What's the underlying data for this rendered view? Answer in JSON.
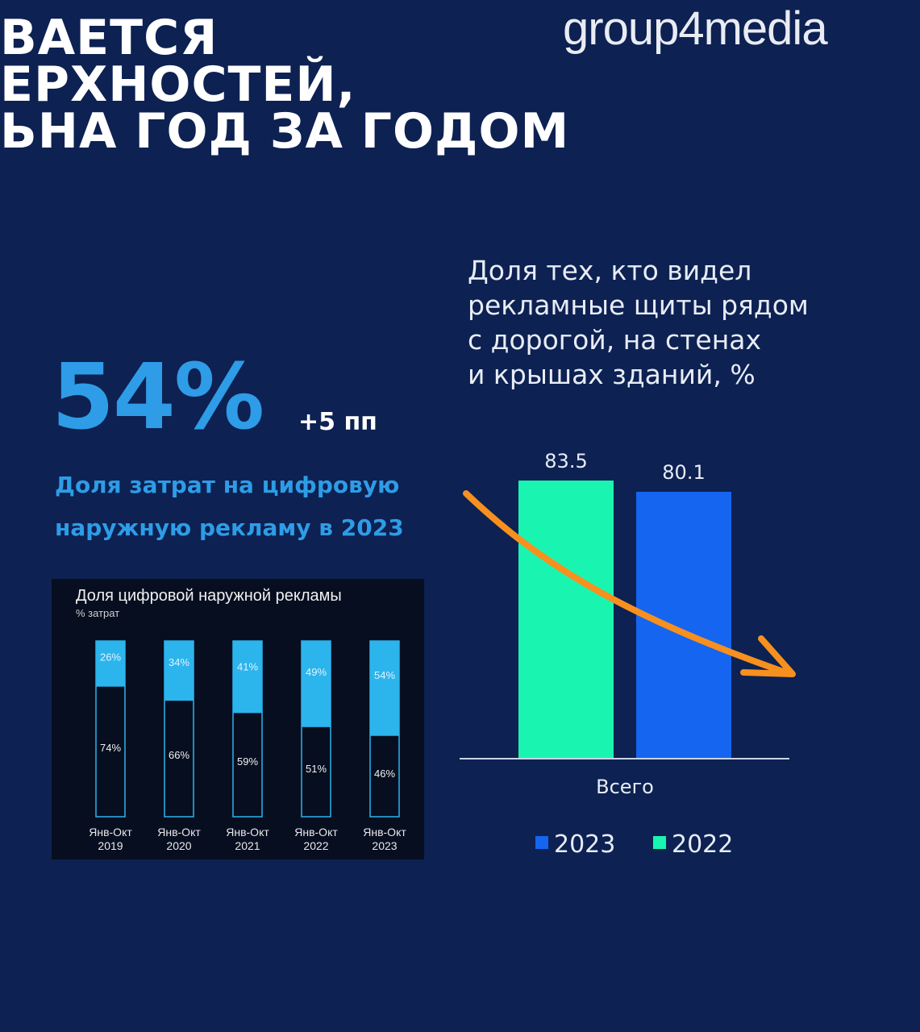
{
  "logo": "group4media",
  "title_lines": [
    "ВАЕТСЯ",
    "ЕРХНОСТЕЙ,",
    "ЬНА ГОД ЗА ГОДОМ"
  ],
  "highlight": {
    "value": "54%",
    "delta": "+5 пп",
    "caption_line1": "Доля затрат на цифровую",
    "caption_line2": "наружную рекламу в 2023"
  },
  "colors": {
    "background": "#0d2152",
    "accent_blue": "#2e9ce6",
    "bar_2023": "#1565f0",
    "bar_2022": "#19f5b0",
    "inset_bg": "#070e20",
    "inset_digital": "#2cb4ec",
    "arrow": "#f7901e"
  },
  "annotation_arrow_icon": "orange-trend-arrow",
  "chart_data": [
    {
      "type": "bar",
      "title_lines": [
        "Доля тех, кто видел",
        "рекламные щиты рядом",
        "с дорогой, на стенах",
        "и крышах зданий, %"
      ],
      "categories": [
        "Всего"
      ],
      "series": [
        {
          "name": "2022",
          "values": [
            83.5
          ],
          "color": "#19f5b0"
        },
        {
          "name": "2023",
          "values": [
            80.1
          ],
          "color": "#1565f0"
        }
      ],
      "value_labels": [
        "83.5",
        "80.1"
      ],
      "legend": [
        "2023",
        "2022"
      ],
      "legend_placement": "bottom",
      "ylim": [
        0,
        90
      ],
      "grid": false
    },
    {
      "type": "bar",
      "stacked": true,
      "title": "Доля цифровой наружной рекламы",
      "subtitle": "% затрат",
      "categories": [
        [
          "Янв-Окт",
          "2019"
        ],
        [
          "Янв-Окт",
          "2020"
        ],
        [
          "Янв-Окт",
          "2021"
        ],
        [
          "Янв-Окт",
          "2022"
        ],
        [
          "Янв-Окт",
          "2023"
        ]
      ],
      "series": [
        {
          "values": [
            26,
            34,
            41,
            49,
            54
          ],
          "labels": [
            "26%",
            "34%",
            "41%",
            "49%",
            "54%"
          ],
          "color": "#2cb4ec"
        },
        {
          "values": [
            74,
            66,
            59,
            51,
            46
          ],
          "labels": [
            "74%",
            "66%",
            "59%",
            "51%",
            "46%"
          ],
          "color": "#070e20"
        }
      ],
      "ylim": [
        0,
        100
      ],
      "grid": false
    }
  ]
}
